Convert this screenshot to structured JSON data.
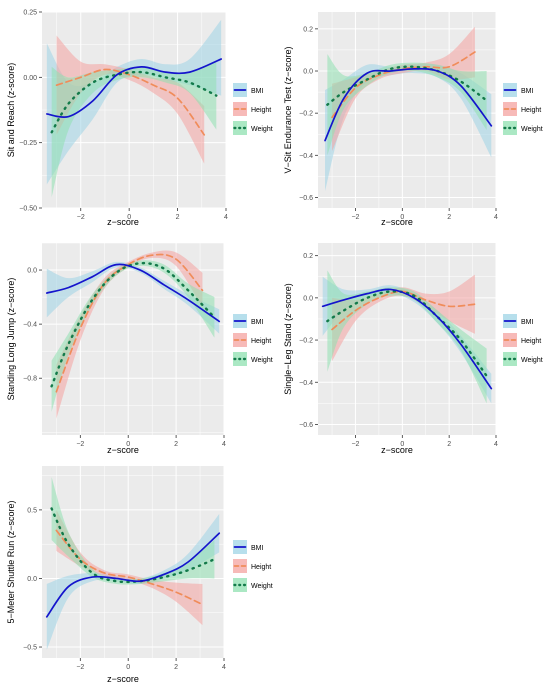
{
  "figure": {
    "legend_labels": [
      "BMI",
      "Height",
      "Weight"
    ],
    "xlabel": "z−score"
  },
  "colors": {
    "BMI_line": "#1414cc",
    "BMI_band": "#9fd4e6",
    "Height_line": "#f08c5a",
    "Height_band": "#f4a3a0",
    "Weight_line": "#137a4a",
    "Weight_band": "#8fe0b0",
    "panel_bg": "#ebebeb",
    "grid": "#ffffff"
  },
  "chart_data": [
    {
      "type": "line",
      "ylabel": "Sit and Reach (z-score)",
      "xlabel": "z−score",
      "xlim": [
        -3.6,
        4.0
      ],
      "ylim": [
        -0.5,
        0.25
      ],
      "xticks": [
        -2,
        0,
        2,
        4
      ],
      "xtick_labels": [
        "−2",
        "0",
        "2",
        "4"
      ],
      "yticks": [
        -0.5,
        -0.25,
        0,
        0.25
      ],
      "ytick_labels": [
        "−0.50",
        "−0.25",
        "0.00",
        "0.25"
      ],
      "legend": "right",
      "series": [
        {
          "name": "BMI",
          "style": "solid",
          "x": [
            -3.4,
            -2.5,
            -1.5,
            -0.5,
            0.5,
            1.5,
            2.5,
            3.8
          ],
          "y": [
            -0.14,
            -0.15,
            -0.09,
            0.01,
            0.04,
            0.02,
            0.02,
            0.07
          ],
          "lower": [
            -0.41,
            -0.28,
            -0.16,
            -0.02,
            0.01,
            -0.01,
            -0.03,
            -0.07
          ],
          "upper": [
            0.13,
            -0.02,
            -0.02,
            0.04,
            0.07,
            0.05,
            0.07,
            0.22
          ]
        },
        {
          "name": "Height",
          "style": "dashed",
          "x": [
            -3.0,
            -2.0,
            -1.0,
            0.0,
            1.0,
            2.0,
            3.1
          ],
          "y": [
            -0.03,
            0.0,
            0.03,
            0.01,
            -0.03,
            -0.08,
            -0.22
          ],
          "lower": [
            -0.22,
            -0.06,
            0.01,
            -0.01,
            -0.06,
            -0.14,
            -0.33
          ],
          "upper": [
            0.16,
            0.06,
            0.05,
            0.03,
            0.0,
            -0.02,
            -0.11
          ]
        },
        {
          "name": "Weight",
          "style": "dotted",
          "x": [
            -3.2,
            -2.5,
            -1.5,
            -0.5,
            0.5,
            1.5,
            2.5,
            3.6
          ],
          "y": [
            -0.21,
            -0.1,
            -0.02,
            0.01,
            0.02,
            0.0,
            -0.02,
            -0.07
          ],
          "lower": [
            -0.46,
            -0.2,
            -0.06,
            -0.01,
            0.0,
            -0.02,
            -0.06,
            -0.2
          ],
          "upper": [
            0.04,
            0.0,
            0.02,
            0.03,
            0.04,
            0.02,
            0.02,
            0.06
          ]
        }
      ]
    },
    {
      "type": "line",
      "ylabel": "V−Sit Endurance Test (z−score)",
      "xlabel": "z−score",
      "xlim": [
        -3.6,
        4.0
      ],
      "ylim": [
        -0.65,
        0.28
      ],
      "xticks": [
        -2,
        0,
        2,
        4
      ],
      "xtick_labels": [
        "−2",
        "0",
        "2",
        "4"
      ],
      "yticks": [
        -0.6,
        -0.4,
        -0.2,
        0,
        0.2
      ],
      "ytick_labels": [
        "−0.6",
        "−0.4",
        "−0.2",
        "0.0",
        "0.2"
      ],
      "legend": "right",
      "series": [
        {
          "name": "BMI",
          "style": "solid",
          "x": [
            -3.3,
            -2.5,
            -1.5,
            -0.5,
            0.5,
            1.5,
            2.5,
            3.8
          ],
          "y": [
            -0.33,
            -0.13,
            -0.01,
            0.0,
            0.01,
            0.0,
            -0.07,
            -0.26
          ],
          "lower": [
            -0.57,
            -0.22,
            -0.05,
            -0.02,
            -0.01,
            -0.03,
            -0.13,
            -0.41
          ],
          "upper": [
            -0.09,
            -0.04,
            0.03,
            0.02,
            0.03,
            0.03,
            -0.01,
            -0.11
          ]
        },
        {
          "name": "Height",
          "style": "dashed",
          "x": [
            -3.0,
            -2.0,
            -1.0,
            0.0,
            1.0,
            2.0,
            3.1
          ],
          "y": [
            -0.22,
            -0.08,
            -0.02,
            0.01,
            0.02,
            0.02,
            0.09
          ],
          "lower": [
            -0.38,
            -0.13,
            -0.04,
            -0.01,
            0.0,
            -0.04,
            -0.03
          ],
          "upper": [
            -0.06,
            -0.03,
            0.0,
            0.03,
            0.04,
            0.08,
            0.21
          ]
        },
        {
          "name": "Weight",
          "style": "dotted",
          "x": [
            -3.2,
            -2.5,
            -1.5,
            -0.5,
            0.5,
            1.5,
            2.5,
            3.6
          ],
          "y": [
            -0.16,
            -0.1,
            -0.04,
            0.01,
            0.02,
            0.0,
            -0.05,
            -0.14
          ],
          "lower": [
            -0.4,
            -0.18,
            -0.07,
            -0.01,
            0.0,
            -0.03,
            -0.1,
            -0.28
          ],
          "upper": [
            0.08,
            -0.02,
            -0.01,
            0.03,
            0.04,
            0.03,
            0.0,
            0.0
          ]
        }
      ]
    },
    {
      "type": "line",
      "ylabel": "Standing Long Jump (z−score)",
      "xlabel": "z−score",
      "xlim": [
        -3.6,
        4.0
      ],
      "ylim": [
        -1.22,
        0.2
      ],
      "xticks": [
        -2,
        0,
        2,
        4
      ],
      "xtick_labels": [
        "−2",
        "0",
        "2",
        "4"
      ],
      "yticks": [
        -0.8,
        -0.4,
        0
      ],
      "ytick_labels": [
        "−0.8",
        "−0.4",
        "0.0"
      ],
      "legend": "right",
      "series": [
        {
          "name": "BMI",
          "style": "solid",
          "x": [
            -3.4,
            -2.5,
            -1.5,
            -0.5,
            0.5,
            1.5,
            2.5,
            3.8
          ],
          "y": [
            -0.17,
            -0.13,
            -0.05,
            0.04,
            0.0,
            -0.11,
            -0.22,
            -0.38
          ],
          "lower": [
            -0.35,
            -0.2,
            -0.09,
            0.02,
            -0.02,
            -0.14,
            -0.26,
            -0.47
          ],
          "upper": [
            0.01,
            -0.06,
            -0.01,
            0.06,
            0.02,
            -0.08,
            -0.18,
            -0.29
          ]
        },
        {
          "name": "Height",
          "style": "dashed",
          "x": [
            -3.0,
            -2.0,
            -1.0,
            0.0,
            1.0,
            2.0,
            3.1
          ],
          "y": [
            -0.9,
            -0.43,
            -0.1,
            0.04,
            0.11,
            0.08,
            -0.15
          ],
          "lower": [
            -1.1,
            -0.52,
            -0.14,
            0.02,
            0.09,
            0.03,
            -0.28
          ],
          "upper": [
            -0.7,
            -0.34,
            -0.06,
            0.06,
            0.13,
            0.13,
            -0.02
          ]
        },
        {
          "name": "Weight",
          "style": "dotted",
          "x": [
            -3.2,
            -2.5,
            -1.5,
            -0.5,
            0.5,
            1.5,
            2.5,
            3.6
          ],
          "y": [
            -0.86,
            -0.55,
            -0.22,
            -0.02,
            0.05,
            0.01,
            -0.15,
            -0.35
          ],
          "lower": [
            -1.05,
            -0.63,
            -0.26,
            -0.04,
            0.03,
            -0.02,
            -0.2,
            -0.5
          ],
          "upper": [
            -0.67,
            -0.47,
            -0.18,
            0.0,
            0.07,
            0.04,
            -0.1,
            -0.2
          ]
        }
      ]
    },
    {
      "type": "line",
      "ylabel": "Single−Leg Stand (z−score)",
      "xlabel": "z−score",
      "xlim": [
        -3.6,
        4.0
      ],
      "ylim": [
        -0.65,
        0.26
      ],
      "xticks": [
        -2,
        0,
        2,
        4
      ],
      "xtick_labels": [
        "−2",
        "0",
        "2",
        "4"
      ],
      "yticks": [
        -0.6,
        -0.4,
        -0.2,
        0,
        0.2
      ],
      "ytick_labels": [
        "−0.6",
        "−0.4",
        "−0.2",
        "0.0",
        "0.2"
      ],
      "legend": "right",
      "series": [
        {
          "name": "BMI",
          "style": "solid",
          "x": [
            -3.4,
            -2.5,
            -1.5,
            -0.5,
            0.5,
            1.5,
            2.5,
            3.8
          ],
          "y": [
            -0.04,
            -0.01,
            0.02,
            0.04,
            0.0,
            -0.09,
            -0.22,
            -0.43
          ],
          "lower": [
            -0.18,
            -0.06,
            0.0,
            0.02,
            -0.02,
            -0.12,
            -0.26,
            -0.5
          ],
          "upper": [
            0.1,
            0.04,
            0.04,
            0.06,
            0.02,
            -0.06,
            -0.18,
            -0.36
          ]
        },
        {
          "name": "Height",
          "style": "dashed",
          "x": [
            -3.0,
            -2.0,
            -1.0,
            0.0,
            1.0,
            2.0,
            3.1
          ],
          "y": [
            -0.15,
            -0.06,
            0.0,
            0.03,
            -0.01,
            -0.04,
            -0.03
          ],
          "lower": [
            -0.3,
            -0.11,
            -0.02,
            0.01,
            -0.04,
            -0.11,
            -0.17
          ],
          "upper": [
            0.0,
            -0.01,
            0.02,
            0.05,
            0.02,
            0.03,
            0.11
          ]
        },
        {
          "name": "Weight",
          "style": "dotted",
          "x": [
            -3.2,
            -2.5,
            -1.5,
            -0.5,
            0.5,
            1.5,
            2.5,
            3.6
          ],
          "y": [
            -0.11,
            -0.06,
            0.0,
            0.03,
            0.01,
            -0.09,
            -0.2,
            -0.37
          ],
          "lower": [
            -0.35,
            -0.14,
            -0.03,
            0.01,
            -0.01,
            -0.12,
            -0.25,
            -0.5
          ],
          "upper": [
            0.13,
            0.02,
            0.03,
            0.05,
            0.03,
            -0.06,
            -0.15,
            -0.24
          ]
        }
      ]
    },
    {
      "type": "line",
      "ylabel": "5−Meter Shuttle Run (z−score)",
      "xlabel": "z−score",
      "xlim": [
        -3.6,
        4.0
      ],
      "ylim": [
        -0.58,
        0.82
      ],
      "xticks": [
        -2,
        0,
        2,
        4
      ],
      "xtick_labels": [
        "−2",
        "0",
        "2",
        "4"
      ],
      "yticks": [
        -0.5,
        0,
        0.5
      ],
      "ytick_labels": [
        "−0.5",
        "0.0",
        "0.5"
      ],
      "legend": "right",
      "series": [
        {
          "name": "BMI",
          "style": "solid",
          "x": [
            -3.4,
            -2.5,
            -1.5,
            -0.5,
            0.5,
            1.5,
            2.5,
            3.8
          ],
          "y": [
            -0.28,
            -0.06,
            0.01,
            0.0,
            -0.02,
            0.03,
            0.12,
            0.33
          ],
          "lower": [
            -0.52,
            -0.14,
            -0.02,
            -0.02,
            -0.04,
            0.0,
            0.06,
            0.19
          ],
          "upper": [
            -0.04,
            0.02,
            0.04,
            0.02,
            0.0,
            0.06,
            0.18,
            0.47
          ]
        },
        {
          "name": "Height",
          "style": "dashed",
          "x": [
            -3.0,
            -2.0,
            -1.0,
            0.0,
            1.0,
            2.0,
            3.1
          ],
          "y": [
            0.35,
            0.14,
            0.04,
            0.01,
            -0.04,
            -0.1,
            -0.19
          ],
          "lower": [
            0.2,
            0.09,
            0.02,
            -0.01,
            -0.07,
            -0.17,
            -0.34
          ],
          "upper": [
            0.5,
            0.19,
            0.06,
            0.03,
            -0.01,
            -0.03,
            -0.04
          ]
        },
        {
          "name": "Weight",
          "style": "dotted",
          "x": [
            -3.2,
            -2.5,
            -1.5,
            -0.5,
            0.5,
            1.5,
            2.5,
            3.6
          ],
          "y": [
            0.51,
            0.25,
            0.04,
            -0.02,
            -0.02,
            0.01,
            0.06,
            0.14
          ],
          "lower": [
            0.28,
            0.16,
            0.01,
            -0.04,
            -0.04,
            -0.02,
            0.0,
            0.0
          ],
          "upper": [
            0.74,
            0.34,
            0.07,
            0.0,
            0.0,
            0.04,
            0.12,
            0.28
          ]
        }
      ]
    }
  ]
}
